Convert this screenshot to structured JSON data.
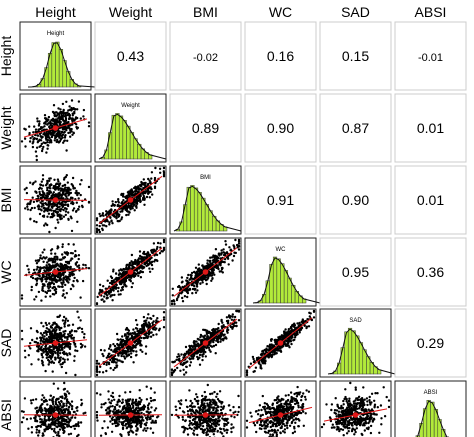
{
  "chart_data": {
    "type": "scatterplot-matrix",
    "variables": [
      "Height",
      "Weight",
      "BMI",
      "WC",
      "SAD",
      "ABSI"
    ],
    "correlations": [
      {
        "row": "Height",
        "col": "Weight",
        "value": "0.43"
      },
      {
        "row": "Height",
        "col": "BMI",
        "value": "-0.02"
      },
      {
        "row": "Height",
        "col": "WC",
        "value": "0.16"
      },
      {
        "row": "Height",
        "col": "SAD",
        "value": "0.15"
      },
      {
        "row": "Height",
        "col": "ABSI",
        "value": "-0.01"
      },
      {
        "row": "Weight",
        "col": "BMI",
        "value": "0.89"
      },
      {
        "row": "Weight",
        "col": "WC",
        "value": "0.90"
      },
      {
        "row": "Weight",
        "col": "SAD",
        "value": "0.87"
      },
      {
        "row": "Weight",
        "col": "ABSI",
        "value": "0.01"
      },
      {
        "row": "BMI",
        "col": "WC",
        "value": "0.91"
      },
      {
        "row": "BMI",
        "col": "SAD",
        "value": "0.90"
      },
      {
        "row": "BMI",
        "col": "ABSI",
        "value": "0.01"
      },
      {
        "row": "WC",
        "col": "SAD",
        "value": "0.95"
      },
      {
        "row": "WC",
        "col": "ABSI",
        "value": "0.36"
      },
      {
        "row": "SAD",
        "col": "ABSI",
        "value": "0.29"
      }
    ],
    "histograms": [
      {
        "variable": "Height",
        "skew": 0.0
      },
      {
        "variable": "Weight",
        "skew": 1.0
      },
      {
        "variable": "BMI",
        "skew": 1.0
      },
      {
        "variable": "WC",
        "skew": 0.5
      },
      {
        "variable": "SAD",
        "skew": 0.6
      },
      {
        "variable": "ABSI",
        "skew": 0.1
      }
    ],
    "colors": {
      "histogram_fill": "#b2ea3a",
      "density_line": "#111111",
      "points": "#000000",
      "smooth_line": "#e01818",
      "center_point": "#e01818",
      "panel_border": "#222222",
      "cell_border": "#cccccc"
    }
  }
}
